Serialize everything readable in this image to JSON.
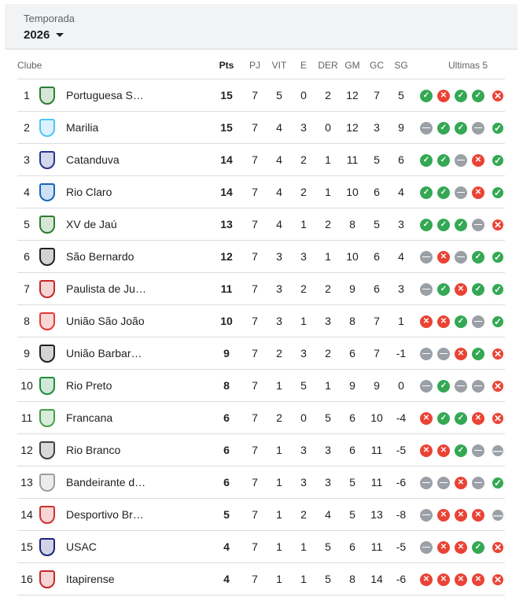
{
  "season": {
    "label": "Temporada",
    "value": "2026"
  },
  "columns": {
    "club": "Clube",
    "pts": "Pts",
    "pj": "PJ",
    "vit": "VIT",
    "e": "E",
    "der": "DER",
    "gm": "GM",
    "gc": "GC",
    "sg": "SG",
    "last5": "Ultimas 5"
  },
  "colors": {
    "win": "#34a853",
    "loss": "#ea4335",
    "draw": "#9aa0a6"
  },
  "rows": [
    {
      "rank": "1",
      "name": "Portuguesa S…",
      "pts": "15",
      "pj": "7",
      "vit": "5",
      "e": "0",
      "der": "2",
      "gm": "12",
      "gc": "7",
      "sg": "5",
      "form": [
        "W",
        "L",
        "W",
        "W",
        "L"
      ],
      "crest": "#2e7d32"
    },
    {
      "rank": "2",
      "name": "Marilia",
      "pts": "15",
      "pj": "7",
      "vit": "4",
      "e": "3",
      "der": "0",
      "gm": "12",
      "gc": "3",
      "sg": "9",
      "form": [
        "D",
        "W",
        "W",
        "D",
        "W"
      ],
      "crest": "#4fc3f7"
    },
    {
      "rank": "3",
      "name": "Catanduva",
      "pts": "14",
      "pj": "7",
      "vit": "4",
      "e": "2",
      "der": "1",
      "gm": "11",
      "gc": "5",
      "sg": "6",
      "form": [
        "W",
        "W",
        "D",
        "L",
        "W"
      ],
      "crest": "#283593"
    },
    {
      "rank": "4",
      "name": "Rio Claro",
      "pts": "14",
      "pj": "7",
      "vit": "4",
      "e": "2",
      "der": "1",
      "gm": "10",
      "gc": "6",
      "sg": "4",
      "form": [
        "W",
        "W",
        "D",
        "L",
        "W"
      ],
      "crest": "#1565c0"
    },
    {
      "rank": "5",
      "name": "XV de Jaú",
      "pts": "13",
      "pj": "7",
      "vit": "4",
      "e": "1",
      "der": "2",
      "gm": "8",
      "gc": "5",
      "sg": "3",
      "form": [
        "W",
        "W",
        "W",
        "D",
        "L"
      ],
      "crest": "#2e7d32"
    },
    {
      "rank": "6",
      "name": "São Bernardo",
      "pts": "12",
      "pj": "7",
      "vit": "3",
      "e": "3",
      "der": "1",
      "gm": "10",
      "gc": "6",
      "sg": "4",
      "form": [
        "D",
        "L",
        "D",
        "W",
        "W"
      ],
      "crest": "#212121"
    },
    {
      "rank": "7",
      "name": "Paulista de Ju…",
      "pts": "11",
      "pj": "7",
      "vit": "3",
      "e": "2",
      "der": "2",
      "gm": "9",
      "gc": "6",
      "sg": "3",
      "form": [
        "D",
        "W",
        "L",
        "W",
        "W"
      ],
      "crest": "#c62828"
    },
    {
      "rank": "8",
      "name": "União São João",
      "pts": "10",
      "pj": "7",
      "vit": "3",
      "e": "1",
      "der": "3",
      "gm": "8",
      "gc": "7",
      "sg": "1",
      "form": [
        "L",
        "L",
        "W",
        "D",
        "W"
      ],
      "crest": "#e53935"
    },
    {
      "rank": "9",
      "name": "União Barbar…",
      "pts": "9",
      "pj": "7",
      "vit": "2",
      "e": "3",
      "der": "2",
      "gm": "6",
      "gc": "7",
      "sg": "-1",
      "form": [
        "D",
        "D",
        "L",
        "W",
        "L"
      ],
      "crest": "#212121"
    },
    {
      "rank": "10",
      "name": "Rio Preto",
      "pts": "8",
      "pj": "7",
      "vit": "1",
      "e": "5",
      "der": "1",
      "gm": "9",
      "gc": "9",
      "sg": "0",
      "form": [
        "D",
        "W",
        "D",
        "D",
        "L"
      ],
      "crest": "#1b8e3a"
    },
    {
      "rank": "11",
      "name": "Francana",
      "pts": "6",
      "pj": "7",
      "vit": "2",
      "e": "0",
      "der": "5",
      "gm": "6",
      "gc": "10",
      "sg": "-4",
      "form": [
        "L",
        "W",
        "W",
        "L",
        "L"
      ],
      "crest": "#43a047"
    },
    {
      "rank": "12",
      "name": "Rio Branco",
      "pts": "6",
      "pj": "7",
      "vit": "1",
      "e": "3",
      "der": "3",
      "gm": "6",
      "gc": "11",
      "sg": "-5",
      "form": [
        "L",
        "L",
        "W",
        "D",
        "D"
      ],
      "crest": "#424242"
    },
    {
      "rank": "13",
      "name": "Bandeirante d…",
      "pts": "6",
      "pj": "7",
      "vit": "1",
      "e": "3",
      "der": "3",
      "gm": "5",
      "gc": "11",
      "sg": "-6",
      "form": [
        "D",
        "D",
        "L",
        "D",
        "W"
      ],
      "crest": "#9e9e9e"
    },
    {
      "rank": "14",
      "name": "Desportivo Br…",
      "pts": "5",
      "pj": "7",
      "vit": "1",
      "e": "2",
      "der": "4",
      "gm": "5",
      "gc": "13",
      "sg": "-8",
      "form": [
        "D",
        "L",
        "L",
        "L",
        "D"
      ],
      "crest": "#d32f2f"
    },
    {
      "rank": "15",
      "name": "USAC",
      "pts": "4",
      "pj": "7",
      "vit": "1",
      "e": "1",
      "der": "5",
      "gm": "6",
      "gc": "11",
      "sg": "-5",
      "form": [
        "D",
        "L",
        "L",
        "W",
        "L"
      ],
      "crest": "#1a237e"
    },
    {
      "rank": "16",
      "name": "Itapirense",
      "pts": "4",
      "pj": "7",
      "vit": "1",
      "e": "1",
      "der": "5",
      "gm": "8",
      "gc": "14",
      "sg": "-6",
      "form": [
        "L",
        "L",
        "L",
        "L",
        "L"
      ],
      "crest": "#c62828"
    }
  ]
}
